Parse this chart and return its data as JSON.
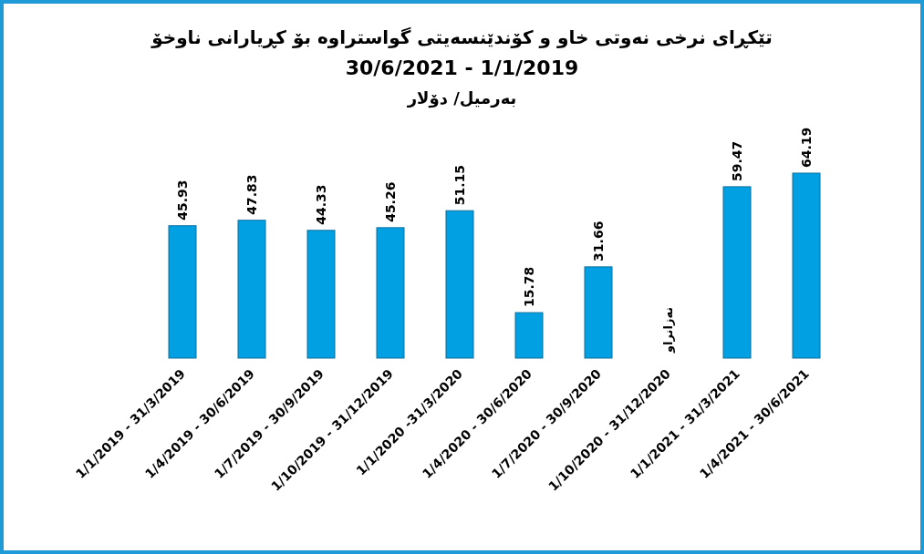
{
  "chart_data": {
    "type": "bar",
    "title": "تێکڕای نرخی نەوتی خاو و  کۆندێنسەیتی گواستراوە بۆ کڕیارانی ناوخۆ",
    "subtitle": "30/6/2021 - 1/1/2019",
    "annotations": [
      "بەرمیل/ دۆلار"
    ],
    "categories": [
      "1/1/2019 - 31/3/2019",
      "1/4/2019 - 30/6/2019",
      "1/7/2019 - 30/9/2019",
      "1/10/2019 - 31/12/2019",
      "1/1/2020 -31/3/2020",
      "1/4/2020 - 30/6/2020",
      "1/7/2020 - 30/9/2020",
      "1/10/2020 - 31/12/2020",
      "1/1/2021 - 31/3/2021",
      "1/4/2021 - 30/6/2021"
    ],
    "values": [
      45.93,
      47.83,
      44.33,
      45.26,
      51.15,
      15.78,
      31.66,
      null,
      59.47,
      64.19
    ],
    "value_labels": [
      "45.93",
      "47.83",
      "44.33",
      "45.26",
      "51.15",
      "15.78",
      "31.66",
      "نەزانراو",
      "59.47",
      "64.19"
    ],
    "color": "#00a0e3"
  }
}
